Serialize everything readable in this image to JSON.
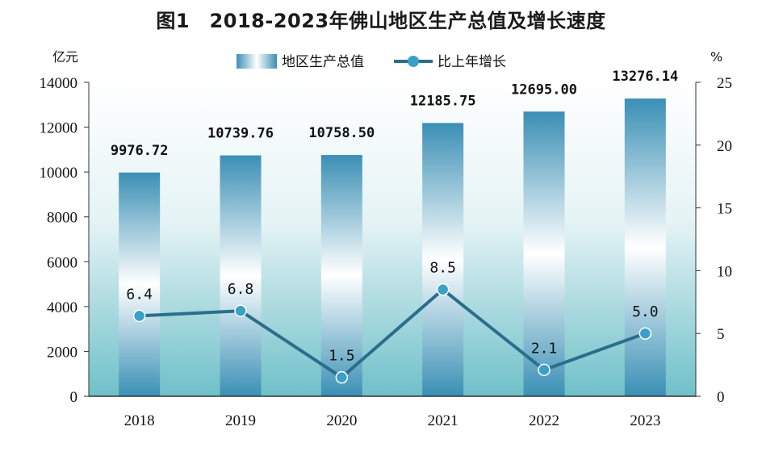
{
  "title": "图1　2018-2023年佛山地区生产总值及增长速度",
  "colors": {
    "bar_dark": "#3a8fb5",
    "bar_light": "#ffffff",
    "background_top": "#ffffff",
    "background_bottom": "#6fc0c9",
    "line": "#2b6e8c",
    "marker": "#3aa0c8"
  },
  "chart_data": {
    "type": "bar+line",
    "categories": [
      "2018",
      "2019",
      "2020",
      "2021",
      "2022",
      "2023"
    ],
    "series": [
      {
        "name": "地区生产总值",
        "type": "bar",
        "axis": "left",
        "values": [
          9976.72,
          10739.76,
          10758.5,
          12185.75,
          12695.0,
          13276.14
        ],
        "labels": [
          "9976.72",
          "10739.76",
          "10758.50",
          "12185.75",
          "12695.00",
          "13276.14"
        ]
      },
      {
        "name": "比上年增长",
        "type": "line",
        "axis": "right",
        "values": [
          6.4,
          6.8,
          1.5,
          8.5,
          2.1,
          5.0
        ],
        "labels": [
          "6.4",
          "6.8",
          "1.5",
          "8.5",
          "2.1",
          "5.0"
        ]
      }
    ],
    "y_left": {
      "unit": "亿元",
      "min": 0,
      "max": 14000,
      "ticks": [
        "0",
        "2000",
        "4000",
        "6000",
        "8000",
        "10000",
        "12000",
        "14000"
      ]
    },
    "y_right": {
      "unit": "%",
      "min": 0,
      "max": 25,
      "ticks": [
        "0",
        "5",
        "10",
        "15",
        "20",
        "25"
      ]
    },
    "legend": {
      "position": "top-center"
    },
    "grid": false
  }
}
